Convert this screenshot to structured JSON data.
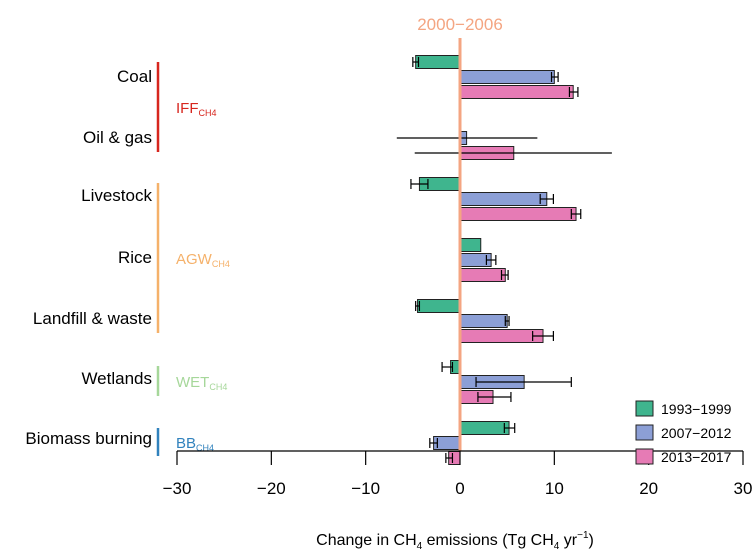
{
  "chart_data": {
    "type": "bar",
    "orientation": "horizontal",
    "reference_label": "2000−2006",
    "xlabel": {
      "pre": "Change in CH",
      "sub1": "4",
      "mid": " emissions (Tg CH",
      "sub2": "4",
      "mid2": " yr",
      "sup": "−1",
      "post": ")"
    },
    "xlim": [
      -30,
      30
    ],
    "x_ticks": [
      -30,
      -20,
      -10,
      0,
      10,
      20,
      30
    ],
    "x_tick_labels": [
      "−30",
      "−20",
      "−10",
      "0",
      "10",
      "20",
      "30"
    ],
    "grid": false,
    "legend_position": "bottom-right",
    "categories": [
      "Coal",
      "Oil & gas",
      "Livestock",
      "Rice",
      "Landfill & waste",
      "Wetlands",
      "Biomass burning"
    ],
    "groups": [
      {
        "label": "IFF",
        "sub": "CH4",
        "color": "#d7261e",
        "categories": [
          "Coal",
          "Oil & gas"
        ]
      },
      {
        "label": "AGW",
        "sub": "CH4",
        "color": "#f5b16a",
        "categories": [
          "Livestock",
          "Rice",
          "Landfill & waste"
        ]
      },
      {
        "label": "WET",
        "sub": "CH4",
        "color": "#a6d79a",
        "categories": [
          "Wetlands"
        ]
      },
      {
        "label": "BB",
        "sub": "CH4",
        "color": "#3182bd",
        "categories": [
          "Biomass burning"
        ]
      }
    ],
    "series": [
      {
        "name": "1993−1999",
        "color": "#3fb58e",
        "values": [
          -4.7,
          null,
          -4.3,
          2.2,
          -4.5,
          -1.0,
          5.2
        ],
        "err_low": [
          -5.0,
          null,
          -5.2,
          null,
          -4.7,
          -1.9,
          4.7
        ],
        "err_high": [
          -4.4,
          null,
          -3.4,
          null,
          -4.3,
          -0.8,
          5.8
        ]
      },
      {
        "name": "2007−2012",
        "color": "#8c9fd6",
        "values": [
          10.0,
          0.7,
          9.2,
          3.3,
          5.0,
          6.8,
          -2.8
        ],
        "err_low": [
          9.7,
          -6.7,
          8.5,
          2.8,
          4.8,
          1.7,
          -3.2
        ],
        "err_high": [
          10.4,
          8.2,
          9.9,
          3.8,
          5.2,
          11.8,
          -2.4
        ],
        "err_low_marker": [
          true,
          false,
          true,
          true,
          true,
          true,
          true
        ],
        "err_high_marker": [
          true,
          false,
          true,
          true,
          true,
          true,
          true
        ]
      },
      {
        "name": "2013−2017",
        "color": "#e67bb5",
        "values": [
          12.0,
          5.7,
          12.3,
          4.8,
          8.8,
          3.5,
          -1.2
        ],
        "err_low": [
          11.6,
          -4.8,
          11.8,
          4.4,
          7.7,
          1.9,
          -1.5
        ],
        "err_high": [
          12.5,
          16.1,
          12.8,
          5.1,
          9.9,
          5.4,
          -0.8
        ],
        "err_low_marker": [
          true,
          false,
          true,
          true,
          true,
          true,
          true
        ],
        "err_high_marker": [
          true,
          false,
          true,
          true,
          true,
          true,
          true
        ]
      }
    ]
  }
}
